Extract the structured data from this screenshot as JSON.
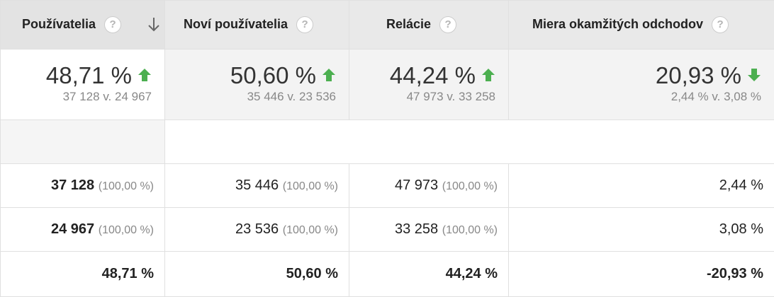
{
  "colors": {
    "arrow_up": "#4caf50",
    "arrow_down": "#4caf50",
    "header_bg": "#e9e9e9"
  },
  "header": {
    "col1": "Používatelia",
    "col2": "Noví používatelia",
    "col3": "Relácie",
    "col4": "Miera okamžitých odchodov",
    "help_glyph": "?"
  },
  "summary": [
    {
      "percent": "48,71 %",
      "trend": "up",
      "compare": "37 128 v. 24 967"
    },
    {
      "percent": "50,60 %",
      "trend": "up",
      "compare": "35 446 v. 23 536"
    },
    {
      "percent": "44,24 %",
      "trend": "up",
      "compare": "47 973 v. 33 258"
    },
    {
      "percent": "20,93 %",
      "trend": "down",
      "compare": "2,44 % v. 3,08 %"
    }
  ],
  "rows": [
    {
      "c1": {
        "value": "37 128",
        "share": "(100,00 %)"
      },
      "c2": {
        "value": "35 446",
        "share": "(100,00 %)"
      },
      "c3": {
        "value": "47 973",
        "share": "(100,00 %)"
      },
      "c4": {
        "value": "2,44 %"
      }
    },
    {
      "c1": {
        "value": "24 967",
        "share": "(100,00 %)"
      },
      "c2": {
        "value": "23 536",
        "share": "(100,00 %)"
      },
      "c3": {
        "value": "33 258",
        "share": "(100,00 %)"
      },
      "c4": {
        "value": "3,08 %"
      }
    }
  ],
  "totals": {
    "c1": "48,71 %",
    "c2": "50,60 %",
    "c3": "44,24 %",
    "c4": "-20,93 %"
  }
}
